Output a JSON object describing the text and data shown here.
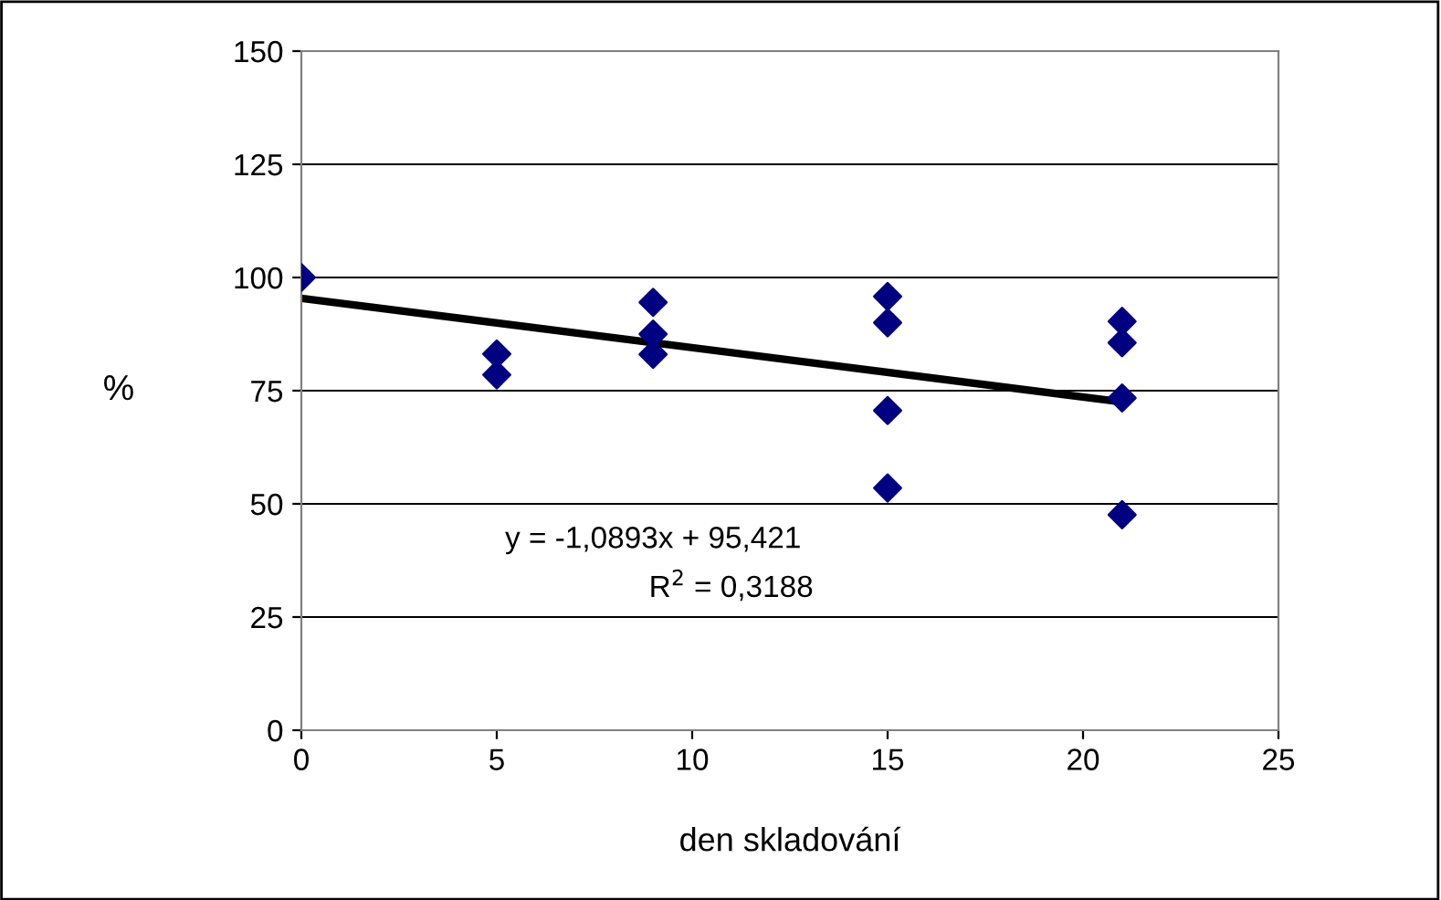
{
  "chart_data": {
    "type": "scatter",
    "xlabel": "den skladování",
    "ylabel": "%",
    "xlim": [
      0,
      25
    ],
    "xticks": [
      0,
      5,
      10,
      15,
      20,
      25
    ],
    "ylim": [
      0,
      150
    ],
    "yticks": [
      0,
      25,
      50,
      75,
      100,
      125,
      150
    ],
    "grid": "y",
    "legend": false,
    "marker": "diamond",
    "series": [
      {
        "color": "#000080",
        "x": [
          0,
          5,
          5,
          9,
          9,
          9,
          15,
          15,
          15,
          15,
          21,
          21,
          21,
          21
        ],
        "values": [
          100,
          83.1,
          78.5,
          94.5,
          87.5,
          83,
          95.8,
          90,
          70.6,
          53.5,
          90.3,
          85.6,
          73.4,
          47.6
        ]
      },
      {
        "type": "line",
        "color": "#000000",
        "x": [
          0,
          21
        ],
        "values": [
          95.4,
          72.5
        ],
        "marker": "none",
        "line_style": "solid"
      }
    ],
    "annotations": [
      "y = -1,0893x + 95,421",
      "R$^{2}$ = 0,3188"
    ]
  }
}
